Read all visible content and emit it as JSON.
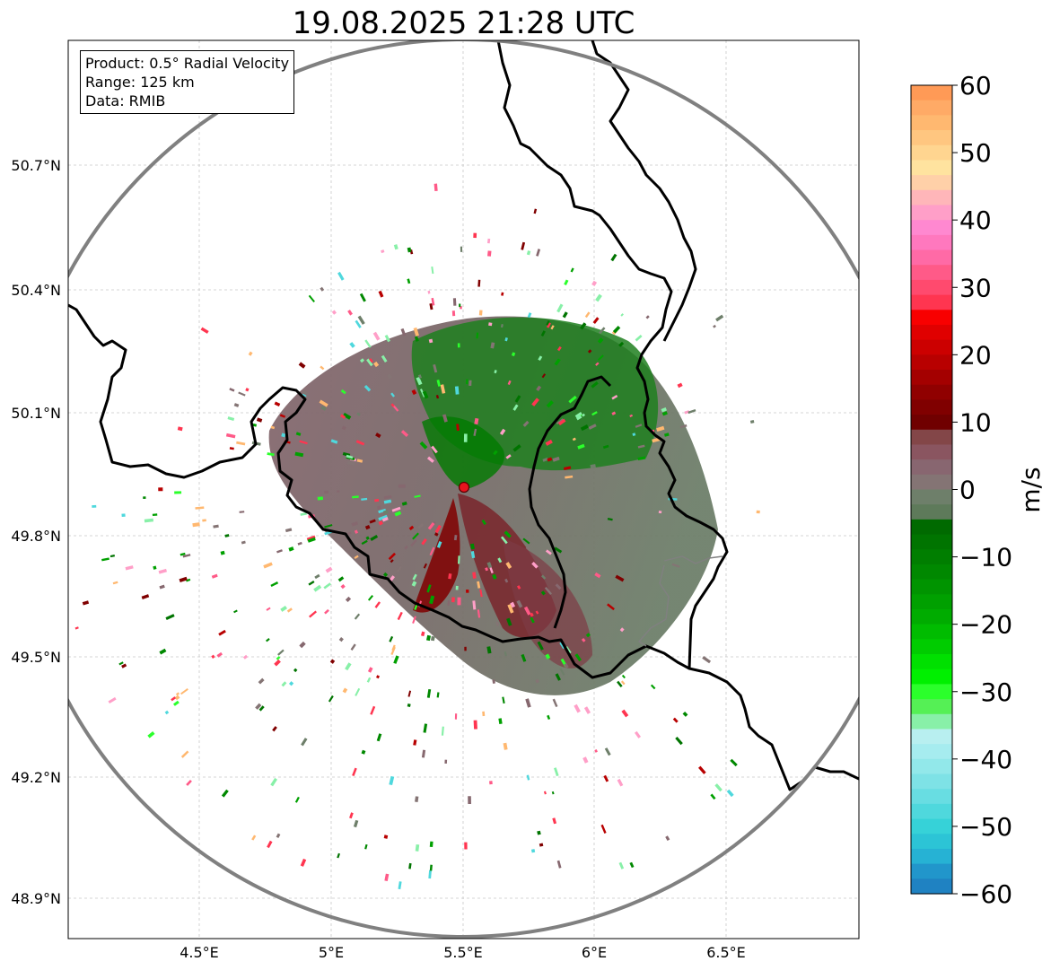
{
  "title": "19.08.2025 21:28 UTC",
  "info": {
    "product": "Product: 0.5° Radial Velocity",
    "range": "Range: 125 km",
    "data": "Data: RMIB"
  },
  "axes": {
    "x_ticks": [
      "4.5°E",
      "5°E",
      "5.5°E",
      "6°E",
      "6.5°E"
    ],
    "y_ticks": [
      "50.7°N",
      "50.4°N",
      "50.1°N",
      "49.8°N",
      "49.5°N",
      "49.2°N",
      "48.9°N"
    ]
  },
  "radar_site": {
    "lon": 5.505,
    "lat": 49.914,
    "label": ""
  },
  "colorbar": {
    "label": "m/s",
    "ticks": [
      "60",
      "50",
      "40",
      "30",
      "20",
      "10",
      "0",
      "−10",
      "−20",
      "−30",
      "−40",
      "−50",
      "−60"
    ],
    "min": -60,
    "max": 60
  },
  "colors": {
    "range_ring": "#808080",
    "border": "#000000",
    "inner_border": "#808080",
    "radar_dot": "#e8141e"
  }
}
